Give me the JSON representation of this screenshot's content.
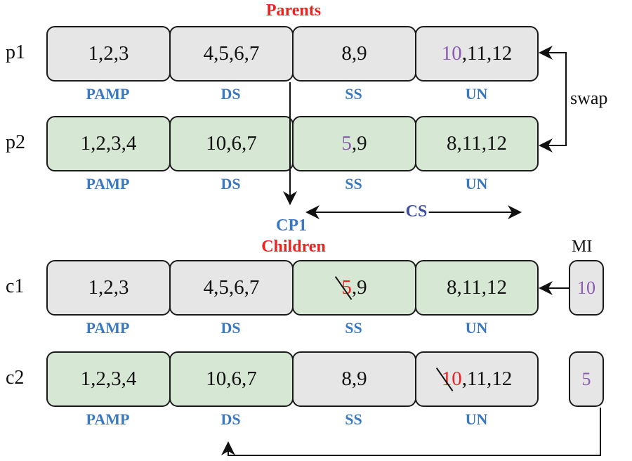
{
  "titles": {
    "parents": "Parents",
    "children": "Children",
    "cp1": "CP1",
    "cs": "CS",
    "swap": "swap",
    "mi": "MI"
  },
  "segment_labels": [
    "PAMP",
    "DS",
    "SS",
    "UN"
  ],
  "colors": {
    "gray": "#e6e6e6",
    "green": "#d6e8d4",
    "label_blue": "#3a78c0",
    "title_red": "#ee2222",
    "purple": "#8a5bb0",
    "cs_blue": "#3f4fa0"
  },
  "rows": [
    {
      "name": "p1",
      "segments": [
        {
          "fill": "gray",
          "parts": [
            {
              "text": "1,2,3"
            }
          ]
        },
        {
          "fill": "gray",
          "parts": [
            {
              "text": "4,5,6,7"
            }
          ]
        },
        {
          "fill": "gray",
          "parts": [
            {
              "text": "8,9"
            }
          ]
        },
        {
          "fill": "gray",
          "parts": [
            {
              "text": "10",
              "color": "purple"
            },
            {
              "text": ",11,12"
            }
          ]
        }
      ]
    },
    {
      "name": "p2",
      "segments": [
        {
          "fill": "green",
          "parts": [
            {
              "text": "1,2,3,4"
            }
          ]
        },
        {
          "fill": "green",
          "parts": [
            {
              "text": "10,6,7"
            }
          ]
        },
        {
          "fill": "green",
          "parts": [
            {
              "text": "5",
              "color": "purple"
            },
            {
              "text": ",9"
            }
          ]
        },
        {
          "fill": "green",
          "parts": [
            {
              "text": "8,11,12"
            }
          ]
        }
      ]
    },
    {
      "name": "c1",
      "segments": [
        {
          "fill": "gray",
          "parts": [
            {
              "text": "1,2,3"
            }
          ]
        },
        {
          "fill": "gray",
          "parts": [
            {
              "text": "4,5,6,7"
            }
          ]
        },
        {
          "fill": "green",
          "parts": [
            {
              "text": "5",
              "color": "red",
              "struck": true
            },
            {
              "text": ",9"
            }
          ]
        },
        {
          "fill": "green",
          "parts": [
            {
              "text": "8,11,12"
            }
          ]
        }
      ],
      "mi": "10"
    },
    {
      "name": "c2",
      "segments": [
        {
          "fill": "green",
          "parts": [
            {
              "text": "1,2,3,4"
            }
          ]
        },
        {
          "fill": "green",
          "parts": [
            {
              "text": "10,6,7"
            }
          ]
        },
        {
          "fill": "gray",
          "parts": [
            {
              "text": "8,9"
            }
          ]
        },
        {
          "fill": "gray",
          "parts": [
            {
              "text": "10",
              "color": "red",
              "struck": true
            },
            {
              "text": ",11,12"
            }
          ]
        }
      ],
      "mi": "5"
    }
  ]
}
